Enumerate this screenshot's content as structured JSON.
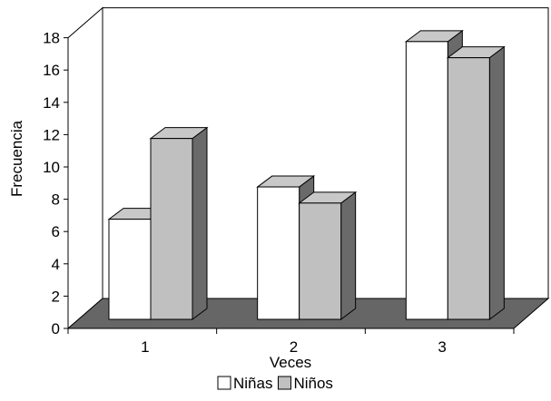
{
  "chart_data": {
    "type": "bar",
    "categories": [
      "1",
      "2",
      "3"
    ],
    "series": [
      {
        "name": "Niñas",
        "values": [
          6.2,
          8.2,
          17.2
        ],
        "color": "#ffffff"
      },
      {
        "name": "Niños",
        "values": [
          11.2,
          7.2,
          16.2
        ],
        "color": "#c0c0c0"
      }
    ],
    "title": "",
    "xlabel": "Veces",
    "ylabel": "Frecuencia",
    "ylim": [
      0,
      18
    ],
    "yticks": [
      "0",
      "2",
      "4",
      "6",
      "8",
      "10",
      "12",
      "14",
      "16",
      "18"
    ],
    "grid": false,
    "legend_position": "bottom",
    "style": "3d",
    "floor_color": "#666666"
  }
}
